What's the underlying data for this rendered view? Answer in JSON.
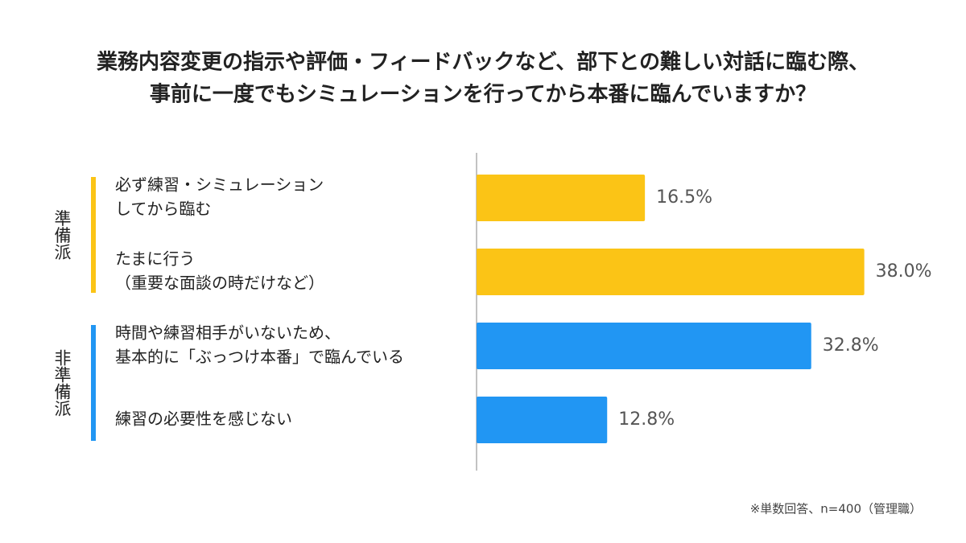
{
  "chart_data": {
    "type": "bar",
    "orientation": "horizontal",
    "title": [
      "業務内容変更の指示や評価・フィードバックなど、部下との難しい対話に臨む際、",
      "事前に一度でもシミュレーションを行ってから本番に臨んでいますか？"
    ],
    "categories": [
      [
        "必ず練習・シミュレーション",
        "してから臨む"
      ],
      [
        "たまに行う",
        "（重要な面談の時だけなど）"
      ],
      [
        "時間や練習相手がいないため、",
        "基本的に「ぶっつけ本番」で臨んでいる"
      ],
      [
        "練習の必要性を感じない"
      ]
    ],
    "series": [
      {
        "name": "準備派",
        "color": "#fbc416",
        "values": [
          16.5,
          38.0,
          null,
          null
        ],
        "value_labels": [
          "16.5%",
          "38.0%",
          null,
          null
        ]
      },
      {
        "name": "非準備派",
        "color": "#2196f3",
        "values": [
          null,
          null,
          32.8,
          12.8
        ],
        "value_labels": [
          null,
          null,
          "32.8%",
          "12.8%"
        ]
      }
    ],
    "xlim": [
      0,
      40
    ],
    "footnote": "※単数回答、n=400（管理職）"
  }
}
